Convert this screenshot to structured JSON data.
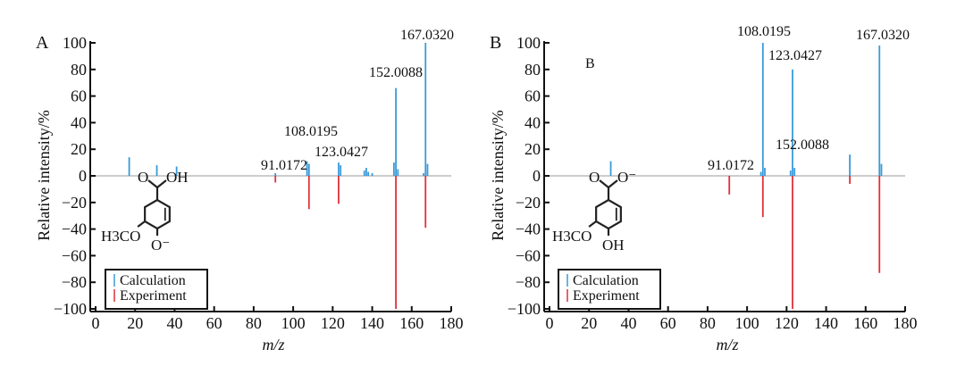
{
  "colors": {
    "calculation": "#3a9ad9",
    "experiment": "#e0303a",
    "axis": "#111111"
  },
  "chart_data": [
    {
      "type": "bar",
      "panel_label": "A",
      "xlabel": "m/z",
      "ylabel": "Relative intensity/%",
      "xlim": [
        0,
        180
      ],
      "ylim": [
        -100,
        100
      ],
      "xticks": [
        0,
        20,
        40,
        60,
        80,
        100,
        120,
        140,
        160,
        180
      ],
      "yticks": [
        100,
        80,
        60,
        40,
        20,
        0,
        -20,
        -40,
        -60,
        -80,
        -100
      ],
      "legend": {
        "position": "bottom-left",
        "entries": [
          "Calculation",
          "Experiment"
        ]
      },
      "structure": {
        "top_left": "O",
        "top_right": "OH",
        "substituent": "H3CO",
        "bottom": "O⁻",
        "highlight": "bottom"
      },
      "series": [
        {
          "name": "Calculation",
          "x": [
            17,
            31,
            41,
            91,
            107,
            108,
            123,
            124,
            136,
            137,
            138,
            140,
            151,
            152,
            153,
            166,
            167,
            168
          ],
          "y": [
            14,
            8,
            7,
            2,
            11,
            9,
            10,
            8,
            4,
            6,
            3,
            2,
            10,
            66,
            5,
            2,
            100,
            9
          ]
        },
        {
          "name": "Experiment",
          "x": [
            91,
            108,
            123,
            152,
            167
          ],
          "y": [
            -5,
            -25,
            -21,
            -100,
            -39
          ]
        }
      ],
      "annotations": [
        {
          "text": "167.0320",
          "x": 167,
          "y": 100
        },
        {
          "text": "152.0088",
          "x": 152,
          "y": 66
        },
        {
          "text": "108.0195",
          "x": 108,
          "y": 11
        },
        {
          "text": "91.0172",
          "x": 91,
          "y": 2
        },
        {
          "text": "123.0427",
          "x": 123,
          "y": 10
        }
      ]
    },
    {
      "type": "bar",
      "panel_label": "B",
      "inner_label": "B",
      "xlabel": "m/z",
      "ylabel": "Relative intensity/%",
      "xlim": [
        0,
        180
      ],
      "ylim": [
        -100,
        100
      ],
      "xticks": [
        0,
        20,
        40,
        60,
        80,
        100,
        120,
        140,
        160,
        180
      ],
      "yticks": [
        100,
        80,
        60,
        40,
        20,
        0,
        -20,
        -40,
        -60,
        -80,
        -100
      ],
      "legend": {
        "position": "bottom-left",
        "entries": [
          "Calculation",
          "Experiment"
        ]
      },
      "structure": {
        "top_left": "O",
        "top_right": "O⁻",
        "substituent": "H3CO",
        "bottom": "OH",
        "highlight": "top_right"
      },
      "series": [
        {
          "name": "Calculation",
          "x": [
            31,
            107,
            108,
            109,
            122,
            123,
            124,
            152,
            167,
            168
          ],
          "y": [
            11,
            3,
            100,
            6,
            4,
            80,
            6,
            16,
            98,
            9
          ]
        },
        {
          "name": "Experiment",
          "x": [
            91,
            108,
            123,
            152,
            167
          ],
          "y": [
            -14,
            -31,
            -100,
            -6,
            -73
          ]
        }
      ],
      "annotations": [
        {
          "text": "108.0195",
          "x": 108,
          "y": 100
        },
        {
          "text": "123.0427",
          "x": 123,
          "y": 80
        },
        {
          "text": "167.0320",
          "x": 167,
          "y": 98
        },
        {
          "text": "152.0088",
          "x": 152,
          "y": 16
        },
        {
          "text": "91.0172",
          "x": 91,
          "y": 2
        }
      ]
    }
  ]
}
